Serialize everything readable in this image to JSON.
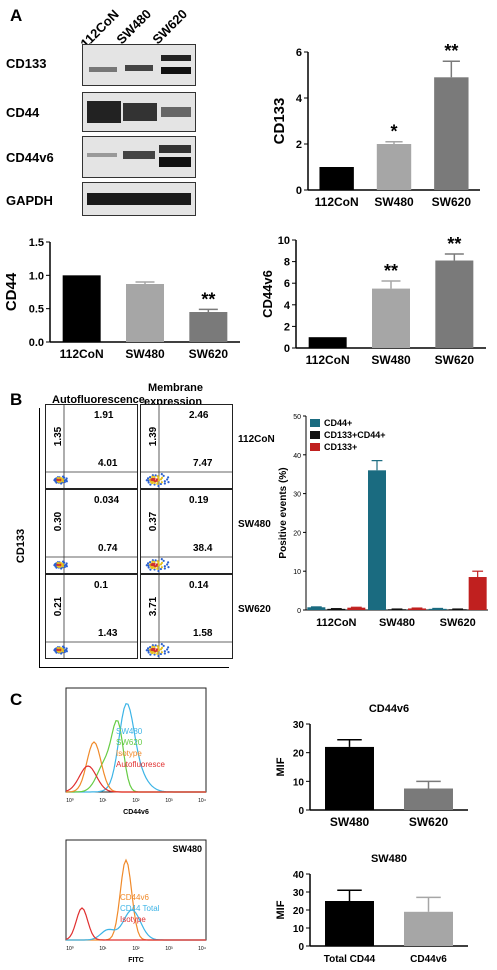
{
  "panelA": {
    "letter": "A",
    "lanes": [
      "112CoN",
      "SW480",
      "SW620"
    ],
    "blots": [
      "CD133",
      "CD44",
      "CD44v6",
      "GAPDH"
    ]
  },
  "panelB": {
    "letter": "B",
    "col1": "Autofluorescence",
    "col2a": "Membrane",
    "col2b": "expression",
    "yaxis": "CD133",
    "rows": [
      {
        "label": "112CoN",
        "af_ul": "1.35",
        "af_ur": "1.91",
        "af_lr": "4.01",
        "me_ul": "1.39",
        "me_ur": "2.46",
        "me_lr": "7.47"
      },
      {
        "label": "SW480",
        "af_ul": "0.30",
        "af_ur": "0.034",
        "af_lr": "0.74",
        "me_ul": "0.37",
        "me_ur": "0.19",
        "me_lr": "38.4"
      },
      {
        "label": "SW620",
        "af_ul": "0.21",
        "af_ur": "0.1",
        "af_lr": "1.43",
        "me_ul": "3.71",
        "me_ur": "0.14",
        "me_lr": "1.58"
      }
    ]
  },
  "panelC": {
    "letter": "C",
    "hist1": {
      "xlabel": "CD44v6",
      "legend": [
        "SW480",
        "SW620",
        "Isotype",
        "Autofluoresce"
      ],
      "colors": [
        "#3cb4e6",
        "#66cc44",
        "#f08a2a",
        "#e03030"
      ]
    },
    "hist2": {
      "title": "SW480",
      "xlabel": "FITC",
      "legend": [
        "CD44v6",
        "CD44 Total",
        "Isotype"
      ],
      "colors": [
        "#f08a2a",
        "#3cb4e6",
        "#e03030"
      ]
    }
  },
  "chart_data": [
    {
      "id": "cd133",
      "type": "bar",
      "categories": [
        "112CoN",
        "SW480",
        "SW620"
      ],
      "values": [
        1.0,
        2.0,
        4.9
      ],
      "errors": [
        0,
        0.1,
        0.7
      ],
      "ylabel": "CD133",
      "ylim": [
        0,
        6
      ],
      "yticks": [
        "0",
        "2",
        "4",
        "6"
      ],
      "annotations": [
        "",
        "*",
        "**"
      ],
      "colors": [
        "#000000",
        "#a6a6a6",
        "#7a7a7a"
      ]
    },
    {
      "id": "cd44",
      "type": "bar",
      "categories": [
        "112CoN",
        "SW480",
        "SW620"
      ],
      "values": [
        1.0,
        0.87,
        0.45
      ],
      "errors": [
        0,
        0.03,
        0.04
      ],
      "ylabel": "CD44",
      "ylim": [
        0,
        1.5
      ],
      "yticks": [
        "0.0",
        "0.5",
        "1.0",
        "1.5"
      ],
      "annotations": [
        "",
        "",
        "**"
      ],
      "colors": [
        "#000000",
        "#a6a6a6",
        "#7a7a7a"
      ]
    },
    {
      "id": "cd44v6",
      "type": "bar",
      "categories": [
        "112CoN",
        "SW480",
        "SW620"
      ],
      "values": [
        1.0,
        5.5,
        8.1
      ],
      "errors": [
        0,
        0.7,
        0.6
      ],
      "ylabel": "CD44v6",
      "ylim": [
        0,
        10
      ],
      "yticks": [
        "0",
        "2",
        "4",
        "6",
        "8",
        "10"
      ],
      "annotations": [
        "",
        "**",
        "**"
      ],
      "colors": [
        "#000000",
        "#a6a6a6",
        "#7a7a7a"
      ]
    },
    {
      "id": "positive",
      "type": "bar",
      "categories": [
        "112CoN",
        "SW480",
        "SW620"
      ],
      "ylabel": "Positive events (%)",
      "ylim": [
        0,
        50
      ],
      "yticks": [
        "0",
        "10",
        "20",
        "30",
        "40",
        "50"
      ],
      "legend_position": "top-left",
      "series": [
        {
          "name": "CD44+",
          "color": "#1a6b80",
          "values": [
            0.7,
            36,
            0.3
          ],
          "errors": [
            0.1,
            2.5,
            0.1
          ]
        },
        {
          "name": "CD133+CD44+",
          "color": "#111111",
          "values": [
            0.3,
            0.2,
            0.2
          ],
          "errors": [
            0.05,
            0.05,
            0.05
          ]
        },
        {
          "name": "CD133+",
          "color": "#c0201f",
          "values": [
            0.6,
            0.4,
            8.5
          ],
          "errors": [
            0.1,
            0.1,
            1.5
          ]
        }
      ]
    },
    {
      "id": "mif1",
      "type": "bar",
      "title": "CD44v6",
      "categories": [
        "SW480",
        "SW620"
      ],
      "values": [
        22,
        7.5
      ],
      "errors": [
        2.5,
        2.5
      ],
      "ylabel": "MIF",
      "ylim": [
        0,
        30
      ],
      "yticks": [
        "0",
        "10",
        "20",
        "30"
      ],
      "colors": [
        "#000000",
        "#7a7a7a"
      ]
    },
    {
      "id": "mif2",
      "type": "bar",
      "title": "SW480",
      "categories": [
        "Total CD44",
        "CD44v6"
      ],
      "values": [
        25,
        19
      ],
      "errors": [
        6,
        8
      ],
      "ylabel": "MIF",
      "ylim": [
        0,
        40
      ],
      "yticks": [
        "0",
        "10",
        "20",
        "30",
        "40"
      ],
      "colors": [
        "#000000",
        "#a6a6a6"
      ]
    }
  ]
}
